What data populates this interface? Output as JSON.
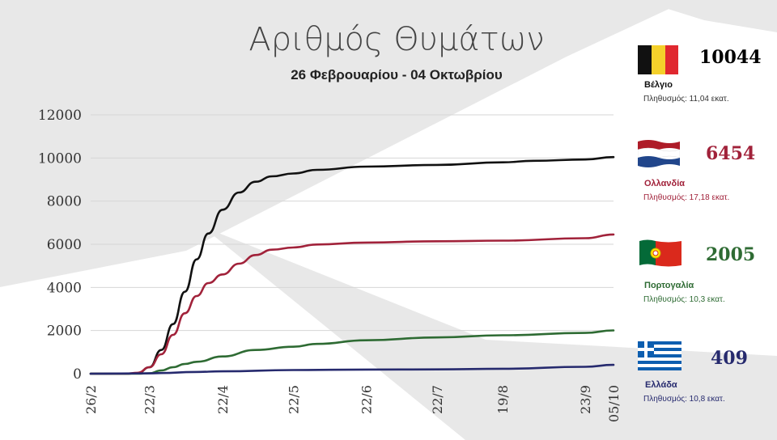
{
  "title": "Αριθμός Θυμάτων",
  "subtitle": "26 Φεβρουαρίου - 04 Οκτωβρίου",
  "colors": {
    "belgium": "#111111",
    "netherlands": "#a1223a",
    "portugal": "#2e6b33",
    "greece": "#262a6e",
    "grid": "#d6d6d6",
    "bg_gray": "#e7e7e7"
  },
  "countries": [
    {
      "key": "belgium",
      "name": "Βέλγιο",
      "deaths": "10044",
      "population": "Πληθυσμός: 11,04 εκατ.",
      "flag": "belgium-flag"
    },
    {
      "key": "netherlands",
      "name": "Ολλανδία",
      "deaths": "6454",
      "population": "Πληθυσμός: 17,18 εκατ.",
      "flag": "netherlands-flag"
    },
    {
      "key": "portugal",
      "name": "Πορτογαλία",
      "deaths": "2005",
      "population": "Πληθυσμός: 10,3 εκατ.",
      "flag": "portugal-flag"
    },
    {
      "key": "greece",
      "name": "Ελλάδα",
      "deaths": "409",
      "population": "Πληθυσμός: 10,8 εκατ.",
      "flag": "greece-flag"
    }
  ],
  "chart_data": {
    "type": "line",
    "title": "Αριθμός Θυμάτων",
    "subtitle": "26 Φεβρουαρίου - 04 Οκτωβρίου",
    "ylim": [
      0,
      12000
    ],
    "yticks": [
      0,
      2000,
      4000,
      6000,
      8000,
      10000,
      12000
    ],
    "xlim": [
      "2020-02-26",
      "2020-10-05"
    ],
    "xticks": [
      {
        "label": "26/2",
        "date": "2020-02-26"
      },
      {
        "label": "22/3",
        "date": "2020-03-22"
      },
      {
        "label": "22/4",
        "date": "2020-04-22"
      },
      {
        "label": "22/5",
        "date": "2020-05-22"
      },
      {
        "label": "22/6",
        "date": "2020-06-22"
      },
      {
        "label": "22/7",
        "date": "2020-07-22"
      },
      {
        "label": "19/8",
        "date": "2020-08-19"
      },
      {
        "label": "23/9",
        "date": "2020-09-23"
      },
      {
        "label": "05/10",
        "date": "2020-10-05"
      }
    ],
    "grid": true,
    "series": [
      {
        "name": "Βέλγιο",
        "color": "#111111",
        "points": [
          [
            "2020-02-26",
            0
          ],
          [
            "2020-03-12",
            0
          ],
          [
            "2020-03-17",
            20
          ],
          [
            "2020-03-22",
            300
          ],
          [
            "2020-03-27",
            1100
          ],
          [
            "2020-04-01",
            2300
          ],
          [
            "2020-04-06",
            3800
          ],
          [
            "2020-04-11",
            5300
          ],
          [
            "2020-04-16",
            6500
          ],
          [
            "2020-04-22",
            7600
          ],
          [
            "2020-04-29",
            8400
          ],
          [
            "2020-05-06",
            8900
          ],
          [
            "2020-05-13",
            9150
          ],
          [
            "2020-05-22",
            9280
          ],
          [
            "2020-06-01",
            9450
          ],
          [
            "2020-06-22",
            9600
          ],
          [
            "2020-07-22",
            9680
          ],
          [
            "2020-08-19",
            9800
          ],
          [
            "2020-09-01",
            9870
          ],
          [
            "2020-09-23",
            9930
          ],
          [
            "2020-10-05",
            10044
          ]
        ]
      },
      {
        "name": "Ολλανδία",
        "color": "#a1223a",
        "points": [
          [
            "2020-02-26",
            0
          ],
          [
            "2020-03-12",
            0
          ],
          [
            "2020-03-17",
            40
          ],
          [
            "2020-03-22",
            300
          ],
          [
            "2020-03-27",
            900
          ],
          [
            "2020-04-01",
            1800
          ],
          [
            "2020-04-06",
            2800
          ],
          [
            "2020-04-11",
            3600
          ],
          [
            "2020-04-16",
            4200
          ],
          [
            "2020-04-22",
            4600
          ],
          [
            "2020-04-29",
            5100
          ],
          [
            "2020-05-06",
            5500
          ],
          [
            "2020-05-13",
            5750
          ],
          [
            "2020-05-22",
            5850
          ],
          [
            "2020-06-01",
            5990
          ],
          [
            "2020-06-22",
            6080
          ],
          [
            "2020-07-22",
            6140
          ],
          [
            "2020-08-19",
            6170
          ],
          [
            "2020-09-23",
            6280
          ],
          [
            "2020-10-05",
            6454
          ]
        ]
      },
      {
        "name": "Πορτογαλία",
        "color": "#2e6b33",
        "points": [
          [
            "2020-02-26",
            0
          ],
          [
            "2020-03-17",
            0
          ],
          [
            "2020-03-22",
            20
          ],
          [
            "2020-03-27",
            150
          ],
          [
            "2020-04-01",
            300
          ],
          [
            "2020-04-06",
            450
          ],
          [
            "2020-04-11",
            550
          ],
          [
            "2020-04-22",
            800
          ],
          [
            "2020-05-06",
            1100
          ],
          [
            "2020-05-22",
            1250
          ],
          [
            "2020-06-01",
            1380
          ],
          [
            "2020-06-22",
            1550
          ],
          [
            "2020-07-22",
            1680
          ],
          [
            "2020-08-19",
            1780
          ],
          [
            "2020-09-23",
            1890
          ],
          [
            "2020-10-05",
            2005
          ]
        ]
      },
      {
        "name": "Ελλάδα",
        "color": "#262a6e",
        "points": [
          [
            "2020-02-26",
            0
          ],
          [
            "2020-03-22",
            15
          ],
          [
            "2020-03-27",
            30
          ],
          [
            "2020-04-10",
            80
          ],
          [
            "2020-04-22",
            110
          ],
          [
            "2020-05-22",
            170
          ],
          [
            "2020-06-22",
            190
          ],
          [
            "2020-07-22",
            200
          ],
          [
            "2020-08-19",
            230
          ],
          [
            "2020-09-23",
            320
          ],
          [
            "2020-10-05",
            409
          ]
        ]
      }
    ]
  }
}
